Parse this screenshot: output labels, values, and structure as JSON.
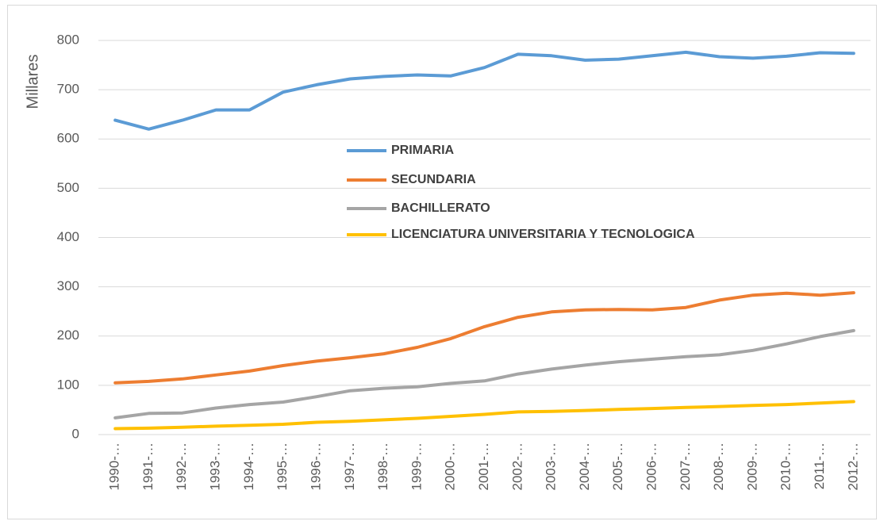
{
  "chart_data": {
    "type": "line",
    "y_label": "Millares",
    "categories": [
      "1990-…",
      "1991-…",
      "1992-…",
      "1993-…",
      "1994-…",
      "1995-…",
      "1996-…",
      "1997-…",
      "1998-…",
      "1999-…",
      "2000-…",
      "2001-…",
      "2002-…",
      "2003-…",
      "2004-…",
      "2005-…",
      "2006-…",
      "2007-…",
      "2008-…",
      "2009-…",
      "2010-…",
      "2011-…",
      "2012-…"
    ],
    "series": [
      {
        "name": "PRIMARIA",
        "color": "#5b9bd5",
        "values": [
          638,
          620,
          638,
          659,
          659,
          695,
          710,
          722,
          727,
          730,
          728,
          745,
          772,
          769,
          760,
          762,
          769,
          776,
          767,
          764,
          768,
          775,
          774
        ]
      },
      {
        "name": "SECUNDARIA",
        "color": "#ed7d31",
        "values": [
          105,
          108,
          113,
          121,
          129,
          140,
          149,
          156,
          164,
          177,
          195,
          219,
          238,
          249,
          253,
          254,
          253,
          258,
          273,
          283,
          287,
          283,
          288
        ]
      },
      {
        "name": "BACHILLERATO",
        "color": "#a5a5a5",
        "values": [
          34,
          43,
          44,
          54,
          61,
          66,
          77,
          89,
          94,
          97,
          104,
          109,
          123,
          133,
          141,
          148,
          153,
          158,
          162,
          171,
          184,
          199,
          211
        ]
      },
      {
        "name": "LICENCIATURA UNIVERSITARIA Y TECNOLOGICA",
        "color": "#ffc000",
        "values": [
          12,
          13,
          15,
          17,
          19,
          21,
          25,
          27,
          30,
          33,
          37,
          41,
          46,
          47,
          49,
          51,
          53,
          55,
          57,
          59,
          61,
          64,
          67
        ]
      }
    ],
    "ylim": [
      0,
      800
    ],
    "yticks": [
      0,
      100,
      200,
      300,
      400,
      500,
      600,
      700,
      800
    ],
    "grid": true
  }
}
